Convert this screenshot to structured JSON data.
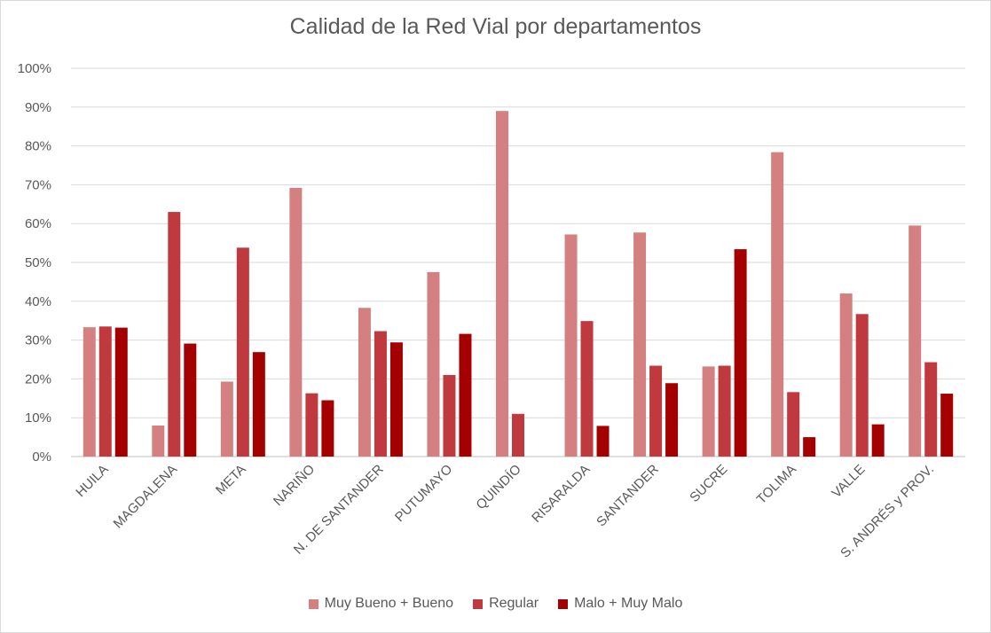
{
  "chart_data": {
    "type": "bar",
    "title": "Calidad de la Red Vial por departamentos",
    "categories": [
      "HUILA",
      "MAGDALENA",
      "META",
      "NARIÑO",
      "N. DE SANTANDER",
      "PUTUMAYO",
      "QUINDÍO",
      "RISARALDA",
      "SANTANDER",
      "SUCRE",
      "TOLIMA",
      "VALLE",
      "S. ANDRÉS y PROV."
    ],
    "series": [
      {
        "name": "Muy Bueno + Bueno",
        "color": "#d48080",
        "values": [
          33.3,
          8,
          19.3,
          69.2,
          38.3,
          47.5,
          89,
          57.2,
          57.7,
          23.2,
          78.4,
          42,
          59.5
        ]
      },
      {
        "name": "Regular",
        "color": "#c0393f",
        "values": [
          33.5,
          63,
          53.8,
          16.3,
          32.3,
          21,
          11,
          34.9,
          23.4,
          23.4,
          16.6,
          36.7,
          24.3
        ]
      },
      {
        "name": "Malo + Muy Malo",
        "color": "#a50000",
        "values": [
          33.2,
          29.1,
          26.9,
          14.5,
          29.4,
          31.6,
          0,
          7.9,
          18.9,
          53.4,
          5,
          8.3,
          16.2
        ]
      }
    ],
    "ylim": [
      0,
      100
    ],
    "yticks": [
      "0%",
      "10%",
      "20%",
      "30%",
      "40%",
      "50%",
      "60%",
      "70%",
      "80%",
      "90%",
      "100%"
    ],
    "grid": true,
    "legend_position": "bottom"
  }
}
